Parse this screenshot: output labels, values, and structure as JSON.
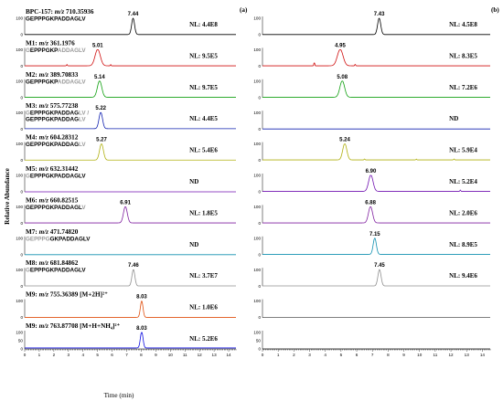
{
  "figure": {
    "panel_a_label": "(a)",
    "panel_b_label": "(b)",
    "ylabel": "Relative Abundance",
    "xlabel": "Time (min)",
    "y_tick_labels": [
      "0",
      "50",
      "100"
    ]
  },
  "chart_data": {
    "type": "line",
    "xlim": [
      0,
      14.5
    ],
    "ylim": [
      0,
      100
    ],
    "x_ticks": [
      "0",
      "1",
      "2",
      "3",
      "4",
      "5",
      "6",
      "7",
      "8",
      "9",
      "10",
      "11",
      "12",
      "13",
      "14"
    ],
    "rows": [
      {
        "id": "BPC-157",
        "title": "BPC-157: ",
        "mz_label": "m/z",
        "mz": " 710.35936",
        "title_extra": "",
        "seq_lines": [
          [
            [
              "GEPPPGKPADDAGLV",
              "#000000"
            ]
          ]
        ],
        "color": "#000000",
        "a": {
          "peak_rt": 7.44,
          "peak_label": "7.44",
          "nl": "NL: 4.4E8",
          "baseline": 1,
          "sigma": 0.1,
          "minor": []
        },
        "b": {
          "peak_rt": 7.43,
          "peak_label": "7.43",
          "nl": "NL: 4.5E8",
          "baseline": 1,
          "sigma": 0.1,
          "minor": []
        }
      },
      {
        "id": "M1",
        "title": "M1: ",
        "mz_label": "m/z",
        "mz": " 361.1976",
        "title_extra": "",
        "seq_lines": [
          [
            [
              "G",
              "#999999"
            ],
            [
              "EPPPGKP",
              "#000000"
            ],
            [
              "ADDAGLV",
              "#999999"
            ]
          ]
        ],
        "color": "#d01010",
        "a": {
          "peak_rt": 5.01,
          "peak_label": "5.01",
          "nl": "NL: 9.5E5",
          "baseline": 2,
          "sigma": 0.18,
          "minor": [
            [
              2.9,
              8
            ],
            [
              5.9,
              8
            ]
          ]
        },
        "b": {
          "peak_rt": 4.95,
          "peak_label": "4.95",
          "nl": "NL: 8.3E5",
          "baseline": 2,
          "sigma": 0.18,
          "minor": [
            [
              3.3,
              22
            ],
            [
              5.9,
              10
            ]
          ]
        }
      },
      {
        "id": "M2",
        "title": "M2: ",
        "mz_label": "m/z",
        "mz": " 389.70833",
        "title_extra": "",
        "seq_lines": [
          [
            [
              "GEPPPGKP",
              "#000000"
            ],
            [
              "ADDAGLV",
              "#999999"
            ]
          ]
        ],
        "color": "#10a010",
        "a": {
          "peak_rt": 5.14,
          "peak_label": "5.14",
          "nl": "NL: 9.7E5",
          "baseline": 2,
          "sigma": 0.15,
          "minor": []
        },
        "b": {
          "peak_rt": 5.08,
          "peak_label": "5.08",
          "nl": "NL: 7.2E6",
          "baseline": 2,
          "sigma": 0.15,
          "minor": []
        }
      },
      {
        "id": "M3",
        "title": "M3: ",
        "mz_label": "m/z",
        "mz": " 575.77238",
        "title_extra": "",
        "seq_lines": [
          [
            [
              "G",
              "#999999"
            ],
            [
              "EPPPGKPADDAG",
              "#000000"
            ],
            [
              "LV /",
              "#999999"
            ]
          ],
          [
            [
              "GEPPPGKPADDAG",
              "#000000"
            ],
            [
              "LV",
              "#999999"
            ]
          ]
        ],
        "color": "#1020b0",
        "a": {
          "peak_rt": 5.22,
          "peak_label": "5.22",
          "nl": "NL: 4.4E5",
          "baseline": 2,
          "sigma": 0.12,
          "minor": []
        },
        "b": {
          "peak_rt": null,
          "peak_label": "",
          "nl": "ND",
          "baseline": 0,
          "sigma": 0.1,
          "minor": []
        }
      },
      {
        "id": "M4",
        "title": "M4: ",
        "mz_label": "m/z",
        "mz": " 604.28312",
        "title_extra": "",
        "seq_lines": [
          [
            [
              "GEPPPGKPADDAG",
              "#000000"
            ],
            [
              "LV",
              "#999999"
            ]
          ]
        ],
        "color": "#b0b010",
        "a": {
          "peak_rt": 5.27,
          "peak_label": "5.27",
          "nl": "NL: 5.4E6",
          "baseline": 2,
          "sigma": 0.13,
          "minor": []
        },
        "b": {
          "peak_rt": 5.24,
          "peak_label": "5.24",
          "nl": "NL: 5.9E4",
          "baseline": 3,
          "sigma": 0.13,
          "minor": [
            [
              6.5,
              6
            ],
            [
              9.8,
              5
            ],
            [
              12.2,
              6
            ]
          ]
        }
      },
      {
        "id": "M5",
        "title": "M5: ",
        "mz_label": "m/z",
        "mz": " 632.31442",
        "title_extra": "",
        "seq_lines": [
          [
            [
              "G",
              "#999999"
            ],
            [
              "EPPPGKPADDAGLV",
              "#000000"
            ]
          ]
        ],
        "color": "#7010b0",
        "a": {
          "peak_rt": null,
          "peak_label": "",
          "nl": "ND",
          "baseline": 0,
          "sigma": 0.1,
          "minor": []
        },
        "b": {
          "peak_rt": 6.9,
          "peak_label": "6.90",
          "nl": "NL: 5.2E4",
          "baseline": 3,
          "sigma": 0.14,
          "minor": [
            [
              12.6,
              8
            ]
          ]
        }
      },
      {
        "id": "M6",
        "title": "M6: ",
        "mz_label": "m/z",
        "mz": " 660.82515",
        "title_extra": "",
        "seq_lines": [
          [
            [
              "GEPPPGKPADDAGL",
              "#000000"
            ],
            [
              "V",
              "#999999"
            ]
          ]
        ],
        "color": "#8020a0",
        "a": {
          "peak_rt": 6.91,
          "peak_label": "6.91",
          "nl": "NL: 1.8E5",
          "baseline": 2,
          "sigma": 0.13,
          "minor": []
        },
        "b": {
          "peak_rt": 6.88,
          "peak_label": "6.88",
          "nl": "NL: 2.0E6",
          "baseline": 2,
          "sigma": 0.13,
          "minor": []
        }
      },
      {
        "id": "M7",
        "title": "M7: ",
        "mz_label": "m/z",
        "mz": " 471.74820",
        "title_extra": "",
        "seq_lines": [
          [
            [
              "GEPPPG",
              "#999999"
            ],
            [
              "GKPADDAGLV",
              "#000000"
            ]
          ]
        ],
        "color": "#1090b0",
        "a": {
          "peak_rt": null,
          "peak_label": "",
          "nl": "ND",
          "baseline": 0,
          "sigma": 0.1,
          "minor": []
        },
        "b": {
          "peak_rt": 7.15,
          "peak_label": "7.15",
          "nl": "NL: 8.9E5",
          "baseline": 2,
          "sigma": 0.1,
          "minor": []
        }
      },
      {
        "id": "M8",
        "title": "M8: ",
        "mz_label": "m/z",
        "mz": " 681.84862",
        "title_extra": "",
        "seq_lines": [
          [
            [
              "G",
              "#999999"
            ],
            [
              "EPPPGKPADDAGLV",
              "#000000"
            ]
          ]
        ],
        "color": "#909090",
        "a": {
          "peak_rt": 7.46,
          "peak_label": "7.46",
          "nl": "NL: 3.7E7",
          "baseline": 1,
          "sigma": 0.1,
          "minor": []
        },
        "b": {
          "peak_rt": 7.45,
          "peak_label": "7.45",
          "nl": "NL: 9.4E6",
          "baseline": 1,
          "sigma": 0.1,
          "minor": []
        }
      },
      {
        "id": "M9a",
        "title": "M9: ",
        "mz_label": "m/z",
        "mz": " 755.36389",
        "title_extra": " [M+2H]²⁺",
        "seq_lines": [],
        "color": "#e05010",
        "a": {
          "peak_rt": 8.03,
          "peak_label": "8.03",
          "nl": "NL: 1.0E6",
          "baseline": 1,
          "sigma": 0.09,
          "minor": []
        },
        "b": {
          "peak_rt": null,
          "peak_label": "",
          "nl": "",
          "baseline": 0,
          "sigma": 0.1,
          "minor": []
        }
      },
      {
        "id": "M9b",
        "title": "M9: ",
        "mz_label": "m/z",
        "mz": " 763.87708",
        "title_extra": " [M+H+NH₄]²⁺",
        "seq_lines": [],
        "color": "#1010e0",
        "a": {
          "peak_rt": 8.03,
          "peak_label": "8.03",
          "nl": "NL: 5.2E6",
          "baseline": 6,
          "sigma": 0.09,
          "minor": []
        },
        "b": {
          "peak_rt": null,
          "peak_label": "",
          "nl": "",
          "baseline": 0,
          "sigma": 0.1,
          "minor": []
        }
      }
    ]
  }
}
